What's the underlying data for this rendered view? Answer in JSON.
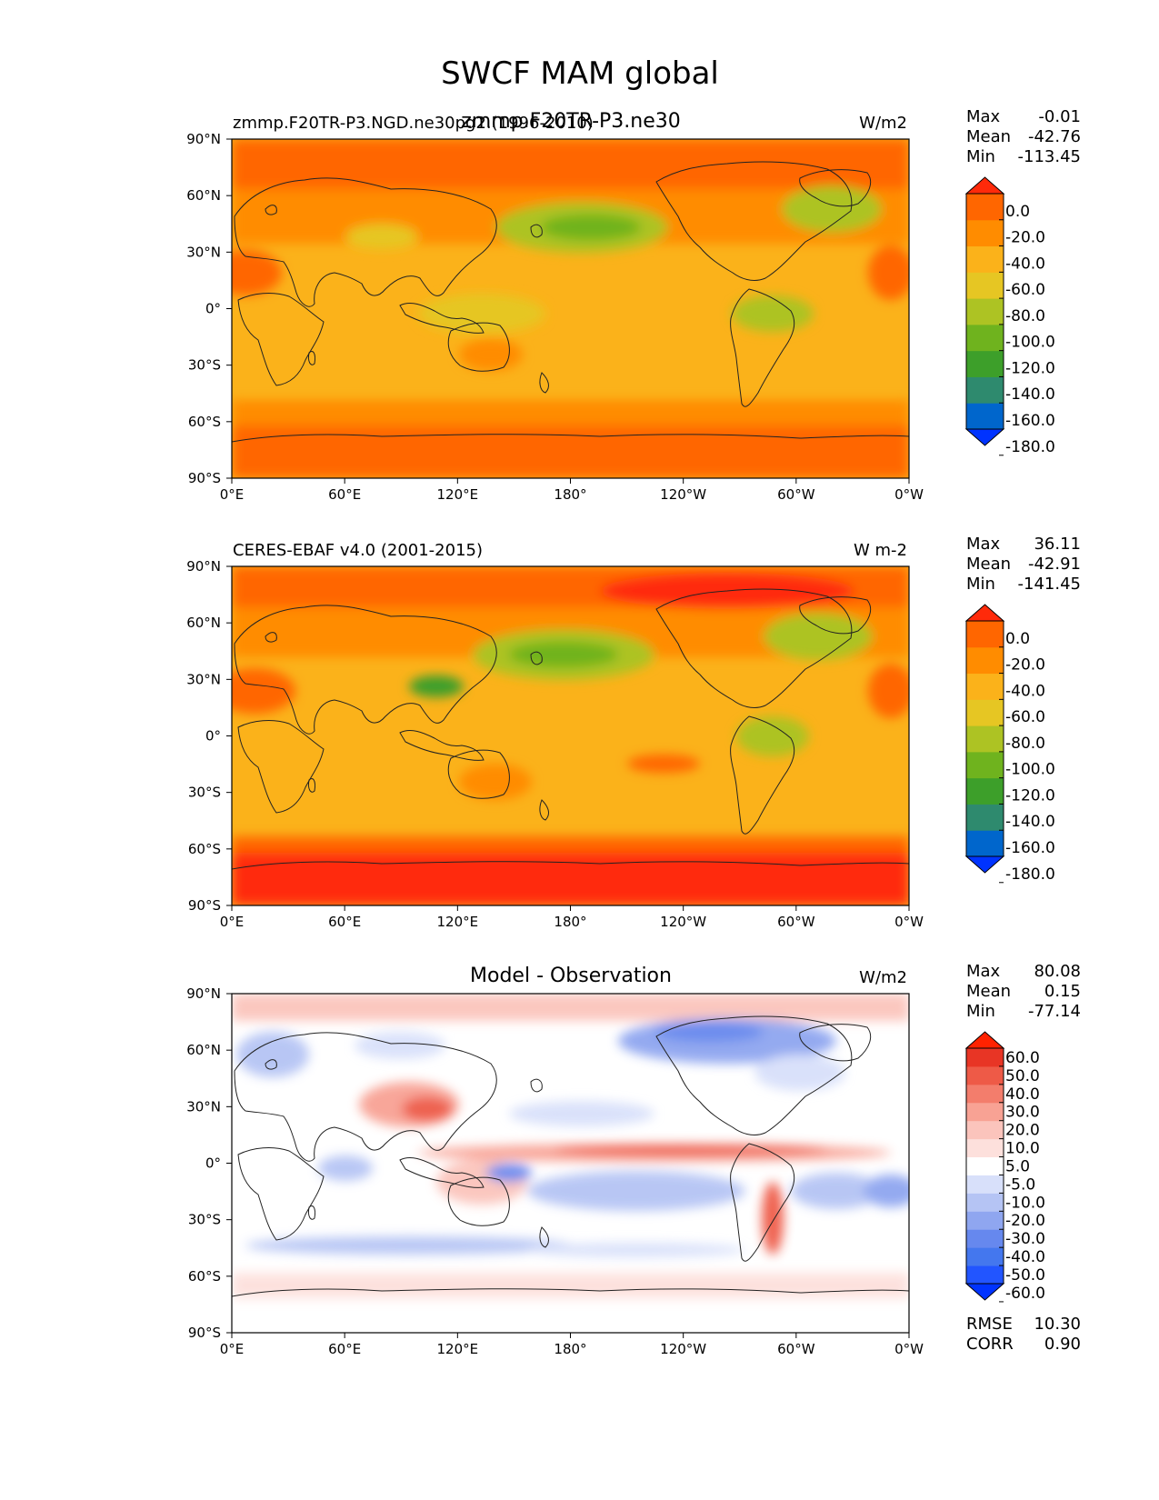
{
  "title": "SWCF MAM global",
  "colors": {
    "absolute_levels": [
      "#0033ff",
      "#0066cc",
      "#2e8a6e",
      "#3d9f2a",
      "#6fb31e",
      "#adc323",
      "#e6c623",
      "#fbb21a",
      "#ff8c00",
      "#ff6600",
      "#ff2a0a"
    ],
    "difference_levels": [
      "#0033ff",
      "#2255ff",
      "#4477ee",
      "#6688ee",
      "#8fa6f0",
      "#b5c4f4",
      "#d8e0fa",
      "#ffffff",
      "#fde0dc",
      "#fbc4bc",
      "#f8a294",
      "#f37d6c",
      "#ee5a47",
      "#e83525",
      "#ff2200"
    ]
  },
  "panels": [
    {
      "left_title": "zmmp.F20TR-P3.NGD.ne30pg2.(1996-2010)",
      "center_title": "zmmp.F20TR-P3.ne30",
      "units": "W/m2",
      "stats": [
        {
          "label": "Max",
          "value": "-0.01"
        },
        {
          "label": "Mean",
          "value": "-42.76"
        },
        {
          "label": "Min",
          "value": "-113.45"
        }
      ],
      "colorbar_labels": [
        "0.0",
        "-20.0",
        "-40.0",
        "-60.0",
        "-80.0",
        "-100.0",
        "-120.0",
        "-140.0",
        "-160.0",
        "-180.0"
      ],
      "xticks": [
        "0°E",
        "60°E",
        "120°E",
        "180°",
        "120°W",
        "60°W",
        "0°W"
      ],
      "yticks": [
        "90°N",
        "60°N",
        "30°N",
        "0°",
        "30°S",
        "60°S",
        "90°S"
      ]
    },
    {
      "left_title": "CERES-EBAF v4.0 (2001-2015)",
      "center_title": "",
      "units": "W m-2",
      "stats": [
        {
          "label": "Max",
          "value": "36.11"
        },
        {
          "label": "Mean",
          "value": "-42.91"
        },
        {
          "label": "Min",
          "value": "-141.45"
        }
      ],
      "colorbar_labels": [
        "0.0",
        "-20.0",
        "-40.0",
        "-60.0",
        "-80.0",
        "-100.0",
        "-120.0",
        "-140.0",
        "-160.0",
        "-180.0"
      ],
      "xticks": [
        "0°E",
        "60°E",
        "120°E",
        "180°",
        "120°W",
        "60°W",
        "0°W"
      ],
      "yticks": [
        "90°N",
        "60°N",
        "30°N",
        "0°",
        "30°S",
        "60°S",
        "90°S"
      ]
    },
    {
      "left_title": "",
      "center_title": "Model - Observation",
      "units": "W/m2",
      "stats": [
        {
          "label": "Max",
          "value": "80.08"
        },
        {
          "label": "Mean",
          "value": "0.15"
        },
        {
          "label": "Min",
          "value": "-77.14"
        }
      ],
      "colorbar_labels": [
        "60.0",
        "50.0",
        "40.0",
        "30.0",
        "20.0",
        "10.0",
        "5.0",
        "-5.0",
        "-10.0",
        "-20.0",
        "-30.0",
        "-40.0",
        "-50.0",
        "-60.0"
      ],
      "xticks": [
        "0°E",
        "60°E",
        "120°E",
        "180°",
        "120°W",
        "60°W",
        "0°W"
      ],
      "yticks": [
        "90°N",
        "60°N",
        "30°N",
        "0°",
        "30°S",
        "60°S",
        "90°S"
      ],
      "extra_stats": [
        {
          "label": "RMSE",
          "value": "10.30"
        },
        {
          "label": "CORR",
          "value": "0.90"
        }
      ]
    }
  ],
  "chart_data": [
    {
      "type": "heatmap",
      "title": "zmmp.F20TR-P3.ne30",
      "subtitle": "zmmp.F20TR-P3.NGD.ne30pg2.(1996-2010)",
      "units": "W/m2",
      "xlim": [
        0,
        360
      ],
      "ylim": [
        -90,
        90
      ],
      "x_ticks": [
        "0°E",
        "60°E",
        "120°E",
        "180°",
        "120°W",
        "60°W",
        "0°W"
      ],
      "y_ticks": [
        "90°N",
        "60°N",
        "30°N",
        "0°",
        "30°S",
        "60°S",
        "90°S"
      ],
      "levels": [
        -180,
        -160,
        -140,
        -120,
        -100,
        -80,
        -60,
        -40,
        -20,
        0
      ],
      "stats": {
        "max": -0.01,
        "mean": -42.76,
        "min": -113.45
      }
    },
    {
      "type": "heatmap",
      "title": "CERES-EBAF v4.0 (2001-2015)",
      "units": "W m-2",
      "xlim": [
        0,
        360
      ],
      "ylim": [
        -90,
        90
      ],
      "x_ticks": [
        "0°E",
        "60°E",
        "120°E",
        "180°",
        "120°W",
        "60°W",
        "0°W"
      ],
      "y_ticks": [
        "90°N",
        "60°N",
        "30°N",
        "0°",
        "30°S",
        "60°S",
        "90°S"
      ],
      "levels": [
        -180,
        -160,
        -140,
        -120,
        -100,
        -80,
        -60,
        -40,
        -20,
        0
      ],
      "stats": {
        "max": 36.11,
        "mean": -42.91,
        "min": -141.45
      }
    },
    {
      "type": "heatmap",
      "title": "Model - Observation",
      "units": "W/m2",
      "xlim": [
        0,
        360
      ],
      "ylim": [
        -90,
        90
      ],
      "x_ticks": [
        "0°E",
        "60°E",
        "120°E",
        "180°",
        "120°W",
        "60°W",
        "0°W"
      ],
      "y_ticks": [
        "90°N",
        "60°N",
        "30°N",
        "0°",
        "30°S",
        "60°S",
        "90°S"
      ],
      "levels": [
        -60,
        -50,
        -40,
        -30,
        -20,
        -10,
        -5,
        5,
        10,
        20,
        30,
        40,
        50,
        60
      ],
      "stats": {
        "max": 80.08,
        "mean": 0.15,
        "min": -77.14,
        "rmse": 10.3,
        "corr": 0.9
      }
    }
  ]
}
